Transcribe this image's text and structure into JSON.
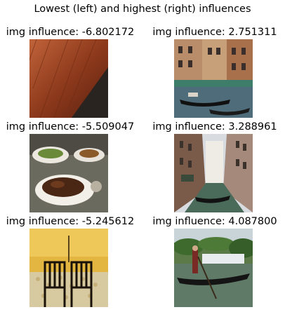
{
  "figure": {
    "title": "Lowest (left) and highest (right) influences"
  },
  "rows": [
    {
      "left": {
        "label": "img influence: -6.802172",
        "image": "wooden-table-photo"
      },
      "right": {
        "label": "img influence: 2.751311",
        "image": "venice-gondolas-photo"
      }
    },
    {
      "left": {
        "label": "img influence: -5.509047",
        "image": "food-plates-photo"
      },
      "right": {
        "label": "img influence: 3.288961",
        "image": "venice-canal-photo"
      }
    },
    {
      "left": {
        "label": "img influence: -5.245612",
        "image": "yellow-room-chairs-photo"
      },
      "right": {
        "label": "img influence: 4.087800",
        "image": "gondolier-boat-photo"
      }
    }
  ]
}
